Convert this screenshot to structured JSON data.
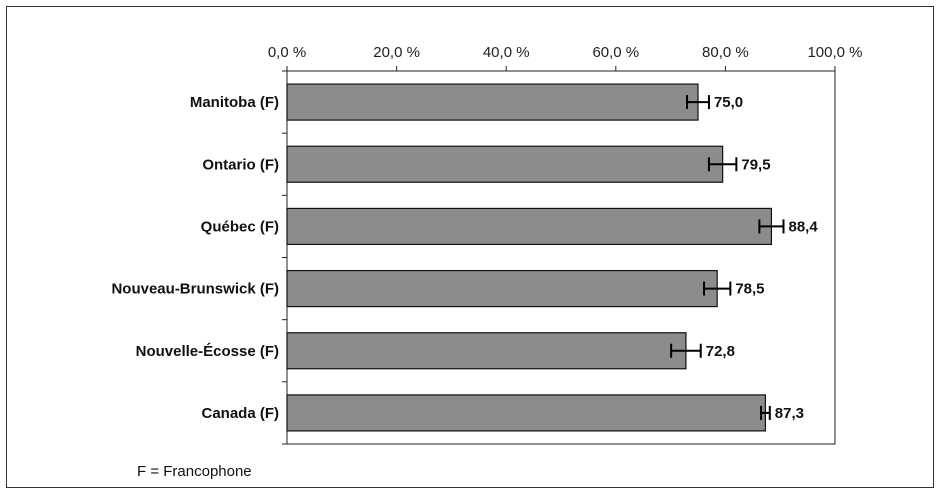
{
  "chart_data": {
    "type": "bar",
    "orientation": "horizontal",
    "categories": [
      "Manitoba (F)",
      "Ontario (F)",
      "Québec (F)",
      "Nouveau-Brunswick (F)",
      "Nouvelle-Écosse (F)",
      "Canada (F)"
    ],
    "values": [
      75.0,
      79.5,
      88.4,
      78.5,
      72.8,
      87.3
    ],
    "value_labels": [
      "75,0",
      "79,5",
      "88,4",
      "78,5",
      "72,8",
      "87,3"
    ],
    "error": [
      2.0,
      2.5,
      2.2,
      2.4,
      2.7,
      0.8
    ],
    "xlim": [
      0,
      100
    ],
    "x_ticks": [
      0,
      20,
      40,
      60,
      80,
      100
    ],
    "x_tick_labels": [
      "0,0 %",
      "20,0 %",
      "40,0 %",
      "60,0 %",
      "80,0 %",
      "100,0 %"
    ],
    "x_axis_position": "top",
    "bar_color": "#8c8c8c",
    "grid": false,
    "title": "",
    "xlabel": "",
    "ylabel": ""
  },
  "footnote": "F = Francophone"
}
